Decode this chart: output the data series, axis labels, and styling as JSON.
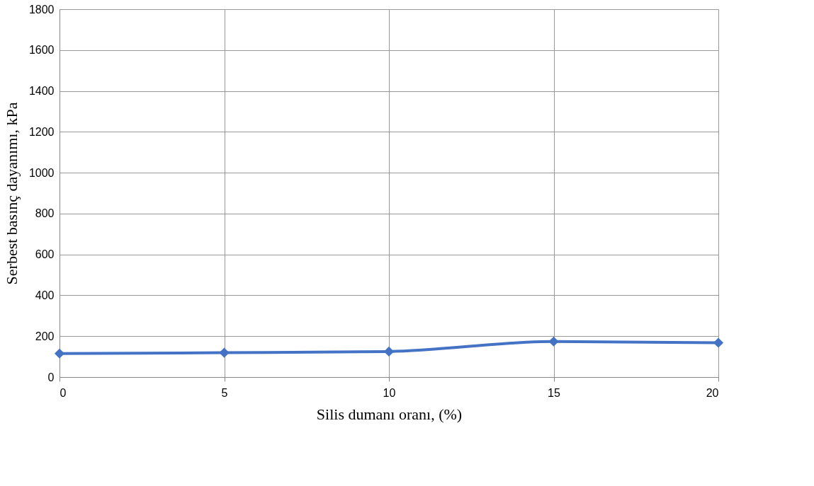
{
  "chart_data": {
    "type": "line",
    "xlabel": "Silis dumanı oranı, (%)",
    "ylabel": "Serbest basınç dayanımı, kPa",
    "x": [
      0,
      5,
      10,
      15,
      20
    ],
    "series": [
      {
        "color": "#4472c4",
        "values": [
          115,
          119,
          125,
          174,
          168
        ]
      }
    ],
    "xlim": [
      0,
      20
    ],
    "xticks": [
      0,
      5,
      10,
      15,
      20
    ],
    "ylim": [
      0,
      1800
    ],
    "yticks": [
      0,
      200,
      400,
      600,
      800,
      1000,
      1200,
      1400,
      1600,
      1800
    ],
    "grid": true,
    "marker": "diamond",
    "line_style": "solid"
  }
}
